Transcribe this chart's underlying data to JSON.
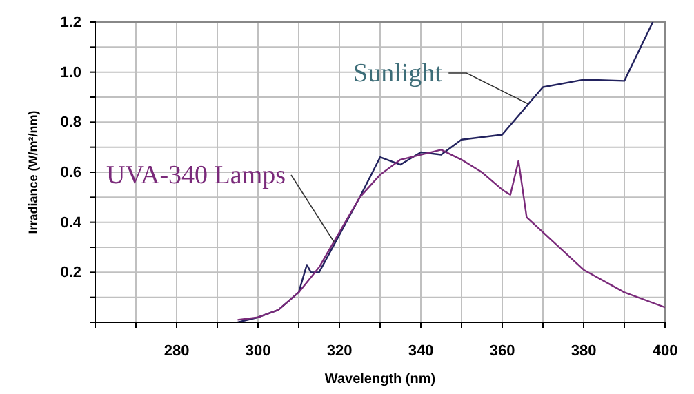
{
  "chart_data": {
    "type": "line",
    "xlabel": "Wavelength (nm)",
    "ylabel": "Irradiance (W/m²/nm)",
    "xlim": [
      260,
      400
    ],
    "ylim": [
      0,
      1.2
    ],
    "xticks": [
      {
        "value": 260,
        "label": null
      },
      {
        "value": 270,
        "label": null
      },
      280,
      {
        "value": 290,
        "label": null
      },
      300,
      {
        "value": 310,
        "label": null
      },
      320,
      {
        "value": 330,
        "label": null
      },
      340,
      {
        "value": 350,
        "label": null
      },
      360,
      {
        "value": 370,
        "label": null
      },
      380,
      {
        "value": 390,
        "label": null
      },
      400
    ],
    "yticks": [
      {
        "value": 0,
        "label": null
      },
      {
        "value": 0.1,
        "label": null
      },
      {
        "value": 0.2,
        "label": "0.2"
      },
      {
        "value": 0.3,
        "label": null
      },
      {
        "value": 0.4,
        "label": "0.4"
      },
      {
        "value": 0.5,
        "label": null
      },
      {
        "value": 0.6,
        "label": "0.6"
      },
      {
        "value": 0.7,
        "label": null
      },
      {
        "value": 0.8,
        "label": "0.8"
      },
      {
        "value": 0.9,
        "label": null
      },
      {
        "value": 1.0,
        "label": "1.0"
      },
      {
        "value": 1.1,
        "label": null
      },
      {
        "value": 1.2,
        "label": "1.2"
      }
    ],
    "grid": true,
    "marker": "none",
    "line_style": "solid",
    "series": [
      {
        "name": "Sunlight",
        "color": "#22225e",
        "x": [
          295,
          300,
          305,
          310,
          312,
          313,
          315,
          320,
          325,
          330,
          335,
          340,
          345,
          350,
          360,
          370,
          380,
          390,
          397
        ],
        "values": [
          0.0,
          0.02,
          0.05,
          0.12,
          0.23,
          0.2,
          0.2,
          0.35,
          0.5,
          0.66,
          0.63,
          0.68,
          0.67,
          0.73,
          0.75,
          0.94,
          0.97,
          0.965,
          1.2
        ]
      },
      {
        "name": "UVA-340 Lamps",
        "color": "#7a2a7a",
        "x": [
          295,
          300,
          305,
          310,
          315,
          320,
          325,
          330,
          335,
          340,
          345,
          350,
          355,
          360,
          362,
          364,
          366,
          370,
          380,
          390,
          400
        ],
        "values": [
          0.01,
          0.02,
          0.05,
          0.12,
          0.22,
          0.36,
          0.5,
          0.59,
          0.65,
          0.67,
          0.69,
          0.65,
          0.6,
          0.53,
          0.51,
          0.645,
          0.42,
          0.36,
          0.21,
          0.12,
          0.06
        ]
      }
    ]
  }
}
